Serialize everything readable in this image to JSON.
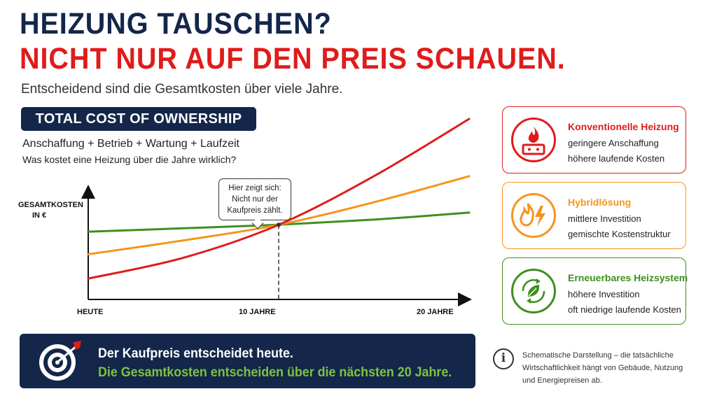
{
  "header": {
    "title_line1": "HEIZUNG TAUSCHEN?",
    "title_line2": "NICHT NUR AUF DEN PREIS SCHAUEN.",
    "subtitle": "Entscheidend sind die Gesamtkosten über viele Jahre."
  },
  "tco": {
    "badge": "TOTAL COST OF OWNERSHIP",
    "formula": "Anschaffung + Betrieb + Wartung + Laufzeit",
    "question": "Was kostet eine Heizung über die Jahre wirklich?"
  },
  "callout": {
    "line1": "Hier zeigt sich:",
    "line2": "Nicht nur der",
    "line3": "Kaufpreis zählt."
  },
  "chart_data": {
    "type": "line",
    "ylabel_line1": "GESAMTKOSTEN",
    "ylabel_line2": "IN €",
    "x": [
      0,
      5,
      10,
      15,
      20
    ],
    "xticks": [
      {
        "x": 0,
        "label": "HEUTE"
      },
      {
        "x": 10,
        "label": "10 JAHRE"
      },
      {
        "x": 20,
        "label": "20 JAHRE"
      }
    ],
    "xlim": [
      0,
      20
    ],
    "ylim": [
      0,
      100
    ],
    "grid": false,
    "series": [
      {
        "key": "conventional",
        "color": "#e01b1b",
        "values": [
          8,
          20,
          39,
          67,
          100
        ]
      },
      {
        "key": "hybrid",
        "color": "#f7941d",
        "values": [
          22,
          30,
          39,
          52,
          67
        ]
      },
      {
        "key": "renewable",
        "color": "#3f8f1f",
        "values": [
          35,
          37,
          39,
          42,
          46
        ]
      }
    ],
    "marker_x": 10
  },
  "cards": [
    {
      "title": "Konventionelle Heizung",
      "line1": "geringere Anschaffung",
      "line2": "höhere laufende Kosten",
      "color": "#e01b1b",
      "icon": "flame-boiler-icon"
    },
    {
      "title": "Hybridlösung",
      "line1": "mittlere Investition",
      "line2": "gemischte Kostenstruktur",
      "color": "#f7941d",
      "icon": "flame-lightning-icon"
    },
    {
      "title": "Erneuerbares Heizsystem",
      "line1": "höhere Investition",
      "line2": "oft niedrige laufende Kosten",
      "color": "#3f8f1f",
      "icon": "leaf-cycle-icon"
    }
  ],
  "bottom": {
    "line1": "Der Kaufpreis entscheidet heute.",
    "line2": "Die Gesamtkosten entscheiden über die nächsten 20 Jahre.",
    "icon": "target-arrow-icon"
  },
  "note": {
    "icon": "info-icon",
    "text": "Schematische Darstellung – die tatsächliche Wirtschaftlichkeit hängt von Gebäude, Nutzung und Energiepreisen ab."
  }
}
